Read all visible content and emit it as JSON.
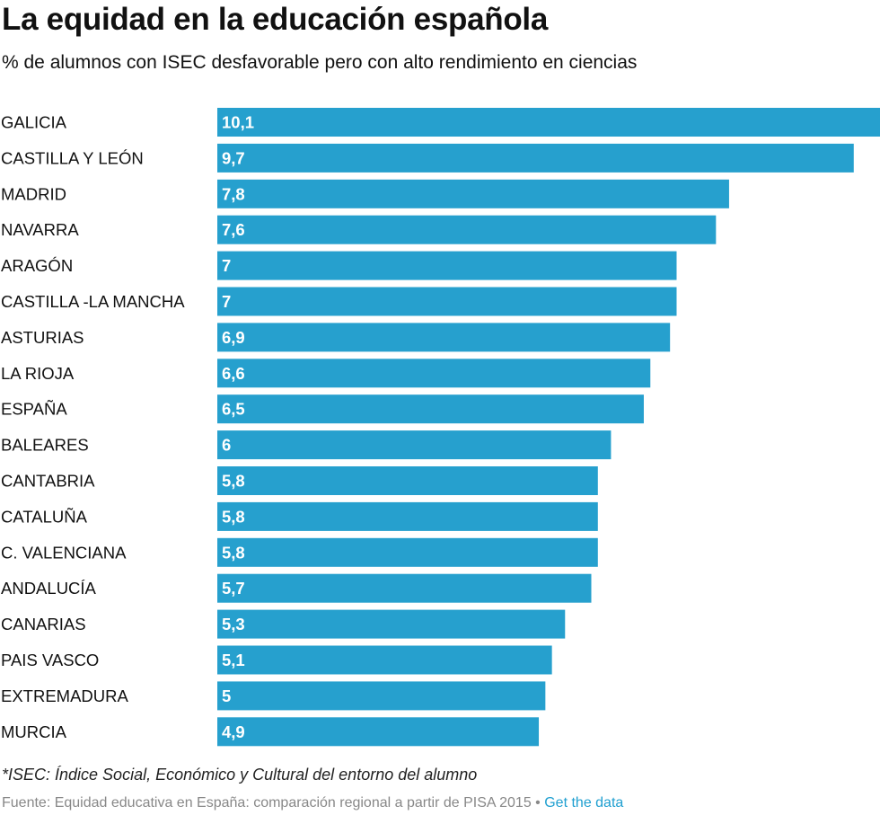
{
  "header": {
    "title": "La equidad en la educación española",
    "subtitle": "% de alumnos con ISEC desfavorable pero con alto rendimiento en ciencias"
  },
  "footer": {
    "note": "*ISEC: Índice Social, Económico y Cultural del entorno del alumno",
    "source": "Fuente: Equidad educativa en España: comparación regional a partir de PISA 2015",
    "separator": " • ",
    "link": "Get the data"
  },
  "colors": {
    "bar": "#26a0ce",
    "bar_label": "#ffffff",
    "link": "#1f9fd0"
  },
  "chart_data": {
    "type": "bar",
    "orientation": "horizontal",
    "title": "La equidad en la educación española",
    "subtitle": "% de alumnos con ISEC desfavorable pero con alto rendimiento en ciencias",
    "categories": [
      "GALICIA",
      "CASTILLA Y LEÓN",
      "MADRID",
      "NAVARRA",
      "ARAGÓN",
      "CASTILLA -LA MANCHA",
      "ASTURIAS",
      "LA RIOJA",
      "ESPAÑA",
      "BALEARES",
      "CANTABRIA",
      "CATALUÑA",
      "C. VALENCIANA",
      "ANDALUCÍA",
      "CANARIAS",
      "PAIS VASCO",
      "EXTREMADURA",
      "MURCIA"
    ],
    "values": [
      10.1,
      9.7,
      7.8,
      7.6,
      7,
      7,
      6.9,
      6.6,
      6.5,
      6,
      5.8,
      5.8,
      5.8,
      5.7,
      5.3,
      5.1,
      5,
      4.9
    ],
    "value_labels": [
      "10,1",
      "9,7",
      "7,8",
      "7,6",
      "7",
      "7",
      "6,9",
      "6,6",
      "6,5",
      "6",
      "5,8",
      "5,8",
      "5,8",
      "5,7",
      "5,3",
      "5,1",
      "5",
      "4,9"
    ],
    "xlim": [
      0,
      10.1
    ],
    "grid": false,
    "legend": "none"
  }
}
